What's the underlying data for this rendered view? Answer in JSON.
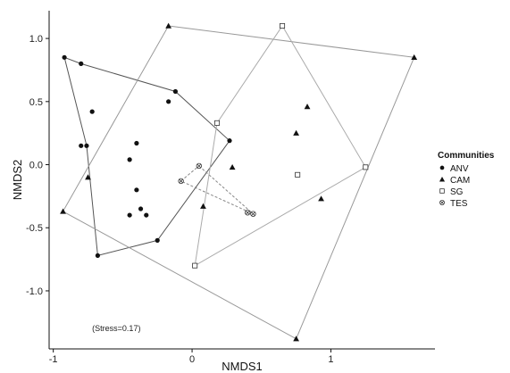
{
  "chart_data": {
    "type": "scatter",
    "xlabel": "NMDS1",
    "ylabel": "NMDS2",
    "xlim": [
      -1.03,
      1.75
    ],
    "ylim": [
      -1.46,
      1.22
    ],
    "xticks": [
      -1,
      0,
      1
    ],
    "xtick_labels": [
      "-1",
      "0",
      "1"
    ],
    "yticks": [
      -1.0,
      -0.5,
      0.0,
      0.5,
      1.0
    ],
    "ytick_labels": [
      "-1.0",
      "-0.5",
      "0.0",
      "0.5",
      "1.0"
    ],
    "grid": false,
    "annotation": "(Stress=0.17)",
    "annotation_pos": [
      -0.72,
      -1.32
    ],
    "legend": {
      "title": "Communities",
      "placement": "right"
    },
    "series": [
      {
        "name": "ANV",
        "marker": "filled-circle",
        "color": "#111111",
        "points": [
          [
            -0.92,
            0.85
          ],
          [
            -0.8,
            0.8
          ],
          [
            -0.72,
            0.42
          ],
          [
            -0.8,
            0.15
          ],
          [
            -0.76,
            0.15
          ],
          [
            -0.12,
            0.58
          ],
          [
            -0.17,
            0.5
          ],
          [
            -0.4,
            0.17
          ],
          [
            -0.45,
            0.04
          ],
          [
            -0.4,
            -0.2
          ],
          [
            -0.37,
            -0.35
          ],
          [
            -0.45,
            -0.4
          ],
          [
            -0.33,
            -0.4
          ],
          [
            -0.25,
            -0.6
          ],
          [
            -0.68,
            -0.72
          ],
          [
            0.27,
            0.19
          ]
        ],
        "hull": [
          [
            -0.92,
            0.85
          ],
          [
            -0.8,
            0.8
          ],
          [
            -0.12,
            0.58
          ],
          [
            0.27,
            0.19
          ],
          [
            -0.25,
            -0.6
          ],
          [
            -0.68,
            -0.72
          ],
          [
            -0.76,
            0.15
          ]
        ]
      },
      {
        "name": "CAM",
        "marker": "filled-triangle",
        "color": "#111111",
        "points": [
          [
            -0.17,
            1.1
          ],
          [
            1.6,
            0.85
          ],
          [
            0.83,
            0.46
          ],
          [
            0.75,
            0.25
          ],
          [
            0.29,
            -0.02
          ],
          [
            -0.75,
            -0.1
          ],
          [
            0.08,
            -0.33
          ],
          [
            0.93,
            -0.27
          ],
          [
            -0.93,
            -0.37
          ],
          [
            0.75,
            -1.38
          ]
        ],
        "hull": [
          [
            -0.17,
            1.1
          ],
          [
            1.6,
            0.85
          ],
          [
            0.75,
            -1.38
          ],
          [
            -0.93,
            -0.37
          ]
        ]
      },
      {
        "name": "SG",
        "marker": "open-square",
        "color": "#111111",
        "points": [
          [
            0.65,
            1.1
          ],
          [
            0.18,
            0.33
          ],
          [
            1.25,
            -0.02
          ],
          [
            0.76,
            -0.08
          ],
          [
            0.02,
            -0.8
          ]
        ],
        "hull": [
          [
            0.65,
            1.1
          ],
          [
            1.25,
            -0.02
          ],
          [
            0.02,
            -0.8
          ],
          [
            0.18,
            0.33
          ]
        ]
      },
      {
        "name": "TES",
        "marker": "circle-x",
        "color": "#111111",
        "points": [
          [
            0.05,
            -0.01
          ],
          [
            -0.08,
            -0.13
          ],
          [
            0.4,
            -0.38
          ],
          [
            0.44,
            -0.39
          ]
        ],
        "hull": [
          [
            0.05,
            -0.01
          ],
          [
            0.44,
            -0.39
          ],
          [
            -0.08,
            -0.13
          ]
        ]
      }
    ]
  }
}
